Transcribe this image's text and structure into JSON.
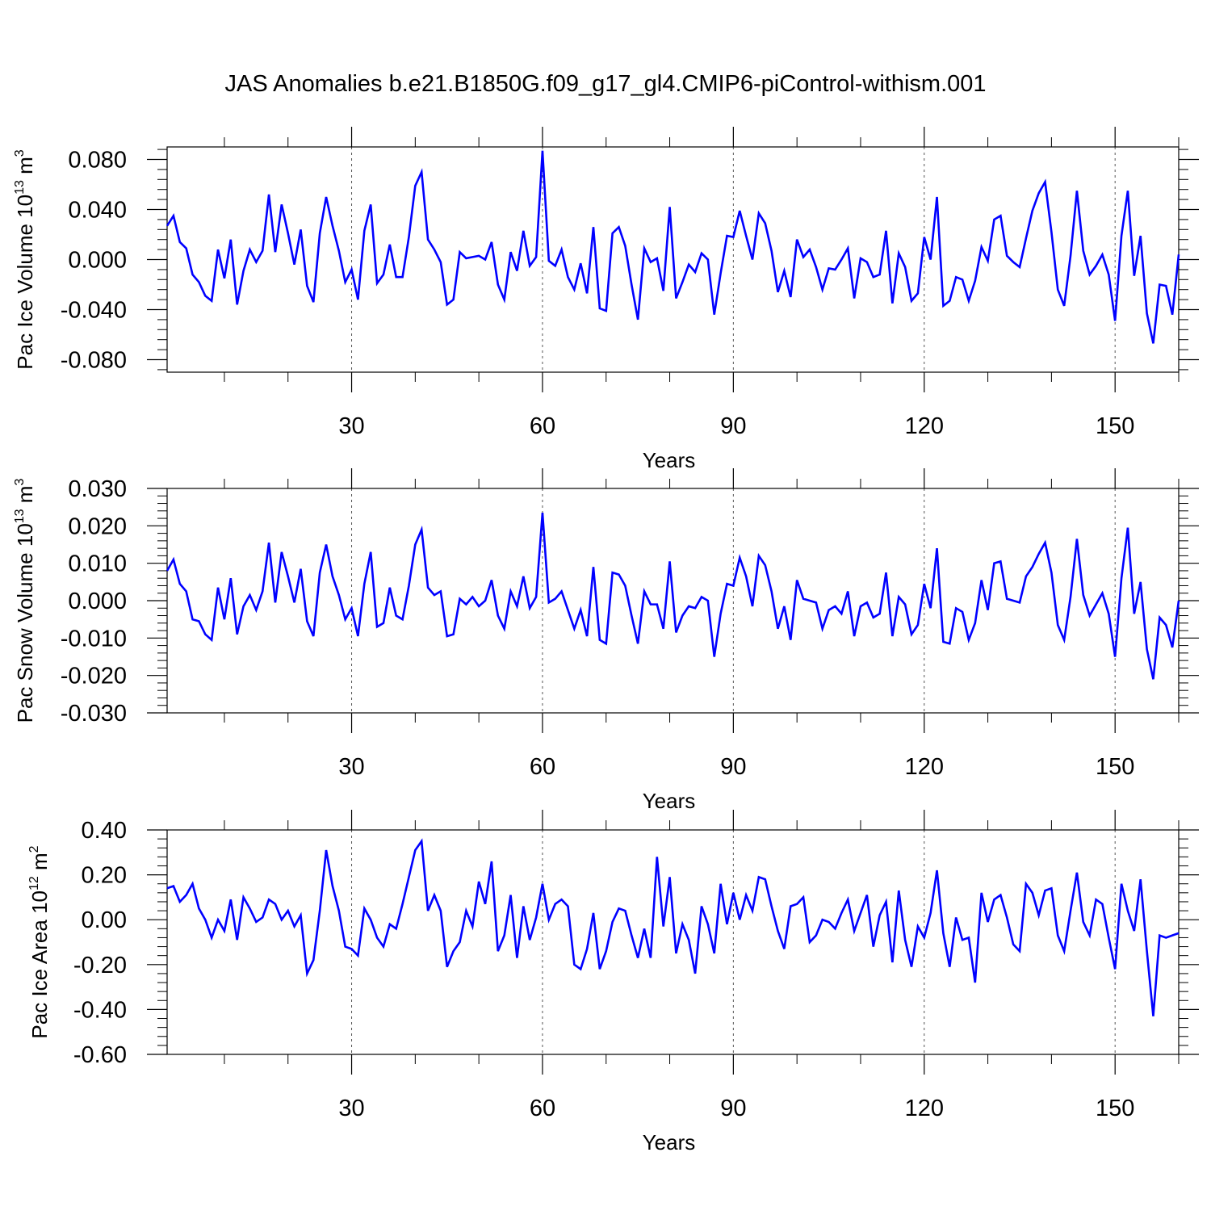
{
  "figure": {
    "title": "JAS Anomalies b.e21.B1850G.f09_g17_gl4.CMIP6-piControl-withism.001"
  },
  "chart_data": [
    {
      "type": "line",
      "title": "",
      "xlabel": "Years",
      "ylabel": "Pac Ice Volume 10",
      "ylabel_exp": "13",
      "ylabel_unit": " m",
      "ylabel_unit_exp": "3",
      "xlim": [
        1,
        160
      ],
      "ylim": [
        -0.09,
        0.09
      ],
      "xticks": [
        30,
        60,
        90,
        120,
        150
      ],
      "yticks": [
        -0.08,
        -0.04,
        0.0,
        0.04,
        0.08
      ],
      "yticklabels": [
        "-0.080",
        "-0.040",
        "0.000",
        "0.040",
        "0.080"
      ],
      "grid": "vertical-dashed",
      "series": [
        {
          "color": "#0000ff",
          "x_start": 1,
          "values": [
            0.027,
            0.035,
            0.014,
            0.009,
            -0.012,
            -0.018,
            -0.029,
            -0.033,
            0.008,
            -0.015,
            0.016,
            -0.036,
            -0.009,
            0.008,
            -0.002,
            0.007,
            0.052,
            0.006,
            0.044,
            0.021,
            -0.004,
            0.024,
            -0.021,
            -0.034,
            0.021,
            0.05,
            0.027,
            0.007,
            -0.018,
            -0.008,
            -0.032,
            0.023,
            0.044,
            -0.019,
            -0.012,
            0.012,
            -0.014,
            -0.014,
            0.018,
            0.059,
            0.07,
            0.016,
            0.008,
            -0.002,
            -0.036,
            -0.032,
            0.006,
            0.001,
            0.002,
            0.003,
            0.0,
            0.014,
            -0.02,
            -0.032,
            0.006,
            -0.009,
            0.023,
            -0.005,
            0.002,
            0.087,
            -0.001,
            -0.005,
            0.008,
            -0.014,
            -0.024,
            -0.003,
            -0.027,
            0.026,
            -0.039,
            -0.041,
            0.021,
            0.026,
            0.011,
            -0.02,
            -0.048,
            0.009,
            -0.002,
            0.001,
            -0.025,
            0.042,
            -0.031,
            -0.018,
            -0.004,
            -0.01,
            0.005,
            0.0,
            -0.044,
            -0.011,
            0.019,
            0.018,
            0.039,
            0.019,
            0.0,
            0.037,
            0.029,
            0.007,
            -0.026,
            -0.009,
            -0.03,
            0.016,
            0.002,
            0.008,
            -0.006,
            -0.024,
            -0.007,
            -0.008,
            0.0,
            0.009,
            -0.031,
            0.001,
            -0.002,
            -0.014,
            -0.012,
            0.023,
            -0.035,
            0.005,
            -0.006,
            -0.033,
            -0.027,
            0.018,
            0.0,
            0.05,
            -0.037,
            -0.033,
            -0.014,
            -0.016,
            -0.033,
            -0.017,
            0.01,
            -0.001,
            0.032,
            0.035,
            0.003,
            -0.002,
            -0.006,
            0.017,
            0.039,
            0.053,
            0.062,
            0.022,
            -0.024,
            -0.037,
            0.003,
            0.055,
            0.007,
            -0.012,
            -0.005,
            0.004,
            -0.012,
            -0.049,
            0.019,
            0.055,
            -0.013,
            0.019,
            -0.043,
            -0.067,
            -0.02,
            -0.021,
            -0.044,
            0.004
          ]
        }
      ]
    },
    {
      "type": "line",
      "title": "",
      "xlabel": "Years",
      "ylabel": "Pac Snow Volume 10",
      "ylabel_exp": "13",
      "ylabel_unit": " m",
      "ylabel_unit_exp": "3",
      "xlim": [
        1,
        160
      ],
      "ylim": [
        -0.03,
        0.03
      ],
      "xticks": [
        30,
        60,
        90,
        120,
        150
      ],
      "yticks": [
        -0.03,
        -0.02,
        -0.01,
        0.0,
        0.01,
        0.02,
        0.03
      ],
      "yticklabels": [
        "-0.030",
        "-0.020",
        "-0.010",
        "0.000",
        "0.010",
        "0.020",
        "0.030"
      ],
      "grid": "vertical-dashed",
      "series": [
        {
          "color": "#0000ff",
          "x_start": 1,
          "values": [
            0.008,
            0.011,
            0.0045,
            0.0025,
            -0.005,
            -0.0055,
            -0.009,
            -0.0105,
            0.0035,
            -0.005,
            0.006,
            -0.009,
            -0.0015,
            0.0015,
            -0.0025,
            0.0025,
            0.0155,
            -0.0005,
            0.013,
            0.0065,
            -0.0005,
            0.0085,
            -0.0055,
            -0.0095,
            0.0075,
            0.015,
            0.0065,
            0.0015,
            -0.005,
            -0.002,
            -0.0095,
            0.0045,
            0.013,
            -0.007,
            -0.006,
            0.0035,
            -0.004,
            -0.005,
            0.004,
            0.015,
            0.019,
            0.0035,
            0.0015,
            0.0025,
            -0.0095,
            -0.009,
            0.0005,
            -0.001,
            0.001,
            -0.0015,
            0.0,
            0.0055,
            -0.004,
            -0.0075,
            0.0025,
            -0.0015,
            0.0065,
            -0.002,
            0.001,
            0.0235,
            -0.0005,
            0.0005,
            0.0025,
            -0.0025,
            -0.0075,
            -0.0025,
            -0.0095,
            0.009,
            -0.0105,
            -0.0115,
            0.0075,
            0.007,
            0.004,
            -0.004,
            -0.0115,
            0.0025,
            -0.001,
            -0.001,
            -0.0075,
            0.0105,
            -0.0085,
            -0.004,
            -0.0015,
            -0.002,
            0.001,
            0.0,
            -0.015,
            -0.0035,
            0.0045,
            0.004,
            0.0115,
            0.0065,
            -0.0015,
            0.012,
            0.0095,
            0.0025,
            -0.0075,
            -0.0015,
            -0.0105,
            0.0055,
            0.0005,
            0.0,
            -0.0005,
            -0.0075,
            -0.0025,
            -0.0015,
            -0.0035,
            0.0025,
            -0.0095,
            -0.0015,
            -0.0005,
            -0.0045,
            -0.0035,
            0.0075,
            -0.0095,
            0.001,
            -0.001,
            -0.009,
            -0.0065,
            0.0045,
            -0.002,
            0.014,
            -0.011,
            -0.0115,
            -0.002,
            -0.003,
            -0.0105,
            -0.006,
            0.0055,
            -0.0025,
            0.01,
            0.0105,
            0.0005,
            0.0,
            -0.0005,
            0.0065,
            0.009,
            0.0125,
            0.0155,
            0.0075,
            -0.0065,
            -0.0105,
            0.001,
            0.0165,
            0.0015,
            -0.004,
            -0.001,
            0.002,
            -0.0035,
            -0.015,
            0.006,
            0.0195,
            -0.0035,
            0.005,
            -0.013,
            -0.021,
            -0.0045,
            -0.0065,
            -0.0125,
            0.0
          ]
        }
      ]
    },
    {
      "type": "line",
      "title": "",
      "xlabel": "Years",
      "ylabel": "Pac Ice Area 10",
      "ylabel_exp": "12",
      "ylabel_unit": " m",
      "ylabel_unit_exp": "2",
      "xlim": [
        1,
        160
      ],
      "ylim": [
        -0.6,
        0.4
      ],
      "xticks": [
        30,
        60,
        90,
        120,
        150
      ],
      "yticks": [
        -0.6,
        -0.4,
        -0.2,
        0.0,
        0.2,
        0.4
      ],
      "yticklabels": [
        "-0.60",
        "-0.40",
        "-0.20",
        "0.00",
        "0.20",
        "0.40"
      ],
      "grid": "vertical-dashed",
      "series": [
        {
          "color": "#0000ff",
          "x_start": 1,
          "values": [
            0.14,
            0.15,
            0.08,
            0.11,
            0.16,
            0.05,
            0.0,
            -0.08,
            0.0,
            -0.05,
            0.09,
            -0.09,
            0.1,
            0.05,
            -0.01,
            0.01,
            0.09,
            0.07,
            0.0,
            0.04,
            -0.03,
            0.02,
            -0.24,
            -0.18,
            0.04,
            0.31,
            0.15,
            0.04,
            -0.12,
            -0.13,
            -0.16,
            0.05,
            0.0,
            -0.08,
            -0.12,
            -0.02,
            -0.04,
            0.07,
            0.19,
            0.31,
            0.35,
            0.04,
            0.11,
            0.04,
            -0.21,
            -0.14,
            -0.1,
            0.04,
            -0.03,
            0.17,
            0.07,
            0.26,
            -0.14,
            -0.07,
            0.11,
            -0.17,
            0.06,
            -0.09,
            0.01,
            0.16,
            0.0,
            0.07,
            0.09,
            0.06,
            -0.2,
            -0.22,
            -0.13,
            0.03,
            -0.22,
            -0.14,
            -0.01,
            0.05,
            0.04,
            -0.07,
            -0.17,
            -0.04,
            -0.17,
            0.28,
            -0.03,
            0.19,
            -0.15,
            -0.02,
            -0.09,
            -0.24,
            0.06,
            -0.02,
            -0.15,
            0.16,
            -0.02,
            0.12,
            0.0,
            0.11,
            0.04,
            0.19,
            0.18,
            0.06,
            -0.05,
            -0.13,
            0.06,
            0.07,
            0.1,
            -0.1,
            -0.07,
            0.0,
            -0.01,
            -0.04,
            0.03,
            0.09,
            -0.05,
            0.03,
            0.11,
            -0.12,
            0.02,
            0.08,
            -0.19,
            0.13,
            -0.09,
            -0.21,
            -0.03,
            -0.08,
            0.03,
            0.22,
            -0.06,
            -0.21,
            0.01,
            -0.09,
            -0.08,
            -0.28,
            0.12,
            -0.01,
            0.09,
            0.11,
            0.01,
            -0.11,
            -0.14,
            0.16,
            0.12,
            0.02,
            0.13,
            0.14,
            -0.07,
            -0.14,
            0.04,
            0.21,
            -0.01,
            -0.07,
            0.09,
            0.07,
            -0.08,
            -0.22,
            0.16,
            0.04,
            -0.05,
            0.18,
            -0.14,
            -0.43,
            -0.07,
            -0.08,
            -0.07,
            -0.06
          ]
        }
      ]
    }
  ]
}
